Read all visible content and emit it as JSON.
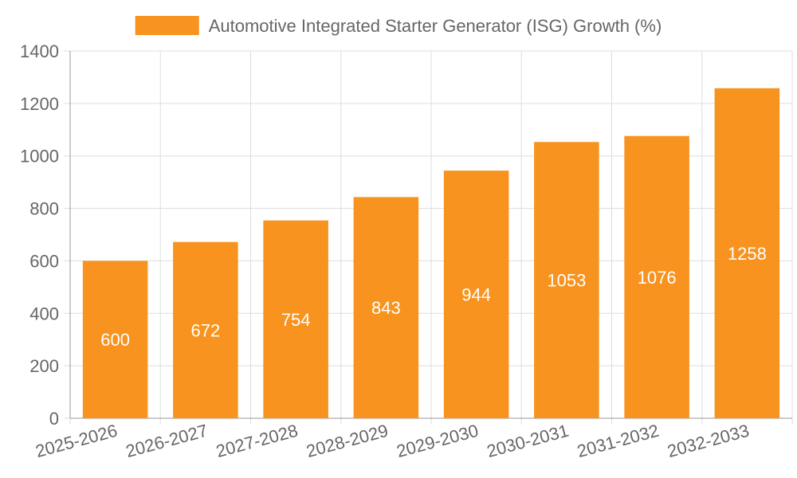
{
  "chart_data": {
    "type": "bar",
    "categories": [
      "2025-2026",
      "2026-2027",
      "2027-2028",
      "2028-2029",
      "2029-2030",
      "2030-2031",
      "2031-2032",
      "2032-2033"
    ],
    "series": [
      {
        "name": "Automotive Integrated Starter Generator (ISG) Growth (%)",
        "values": [
          600,
          672,
          754,
          843,
          944,
          1053,
          1076,
          1258
        ]
      }
    ],
    "y_ticks": [
      "0",
      "200",
      "400",
      "600",
      "800",
      "1000",
      "1200",
      "1400"
    ],
    "ylim": [
      0,
      1400
    ],
    "grid": true,
    "legend_position": "top",
    "data_labels": true,
    "bar_color": "#F7931E",
    "grid_color": "#dddddd",
    "text_color": "#666666"
  }
}
